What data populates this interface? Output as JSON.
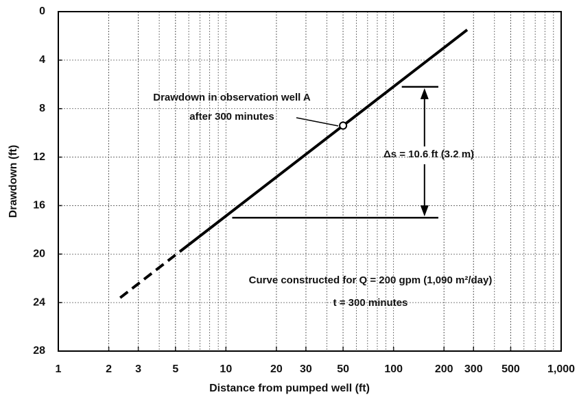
{
  "chart_data": {
    "type": "line",
    "xlabel": "Distance from pumped well (ft)",
    "ylabel": "Drawdown (ft)",
    "xscale": "log",
    "xlim": [
      1,
      1000
    ],
    "ylim": [
      28,
      0
    ],
    "xticks": [
      1,
      2,
      3,
      5,
      10,
      20,
      30,
      50,
      100,
      200,
      300,
      500,
      {
        "value": 1000,
        "label": "1,000"
      }
    ],
    "yticks": [
      0,
      4,
      8,
      12,
      16,
      20,
      24,
      28
    ],
    "grid": true,
    "color": "#000000",
    "series": [
      {
        "x": [
          2.34,
          5.3
        ],
        "values": [
          23.6,
          19.8
        ],
        "dashed": true
      },
      {
        "x": [
          5.3,
          275
        ],
        "values": [
          19.8,
          1.5
        ],
        "dashed": false
      }
    ],
    "point": {
      "x": 50,
      "y": 9.4
    },
    "delta_lines": [
      {
        "y": 6.2,
        "x": [
          112,
          185
        ]
      },
      {
        "y": 17,
        "x": [
          10.9,
          185
        ]
      }
    ],
    "arrow_x": 153,
    "annotations": {
      "well_line1": "Drawdown in observation well A",
      "well_line2": "after 300 minutes",
      "delta": "Δs = 10.6 ft (3.2 m)",
      "curve": "Curve constructed for Q = 200 gpm (1,090 m²/day)",
      "time": "t = 300 minutes"
    }
  }
}
